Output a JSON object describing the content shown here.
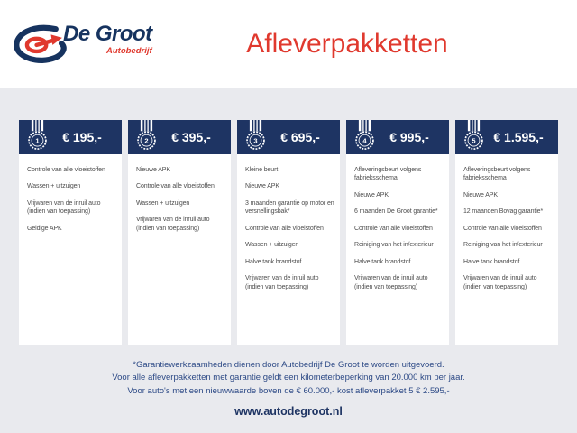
{
  "logo": {
    "name": "De Groot",
    "subtitle": "Autobedrijf"
  },
  "page_title": "Afleverpakketten",
  "packages": [
    {
      "number": "1",
      "price": "€ 195,-",
      "items": [
        "Controle van alle vloeistoffen",
        "Wassen + uitzuigen",
        "Vrijwaren van de inruil auto (indien van toepassing)",
        "Geldige APK"
      ]
    },
    {
      "number": "2",
      "price": "€ 395,-",
      "items": [
        "Nieuwe APK",
        "Controle van alle vloeistoffen",
        "Wassen + uitzuigen",
        "Vrijwaren van de inruil auto (indien van toepassing)"
      ]
    },
    {
      "number": "3",
      "price": "€ 695,-",
      "items": [
        "Kleine beurt",
        "Nieuwe APK",
        "3 maanden garantie op motor en versnellingsbak*",
        "Controle van alle vloeistoffen",
        "Wassen + uitzuigen",
        "Halve tank brandstof",
        "Vrijwaren van de inruil auto (indien van toepassing)"
      ]
    },
    {
      "number": "4",
      "price": "€ 995,-",
      "items": [
        "Afleveringsbeurt volgens fabrieksschema",
        "Nieuwe APK",
        "6 maanden De Groot garantie*",
        "Controle van alle vloeistoffen",
        "Reiniging van het in/exterieur",
        "Halve tank brandstof",
        "Vrijwaren van de inruil auto (indien van toepassing)"
      ]
    },
    {
      "number": "5",
      "price": "€ 1.595,-",
      "items": [
        "Afleveringsbeurt volgens fabrieksschema",
        "Nieuwe APK",
        "12 maanden Bovag garantie*",
        "Controle van alle vloeistoffen",
        "Reiniging van het in/exterieur",
        "Halve tank brandstof",
        "Vrijwaren van de inruil auto (indien van toepassing)"
      ]
    }
  ],
  "footer": {
    "notes": [
      "*Garantiewerkzaamheden dienen door Autobedrijf De Groot te worden uitgevoerd.",
      "Voor alle afleverpakketten met garantie geldt een kilometerbeperking van 20.000 km per jaar.",
      "Voor auto's met een nieuwwaarde boven de € 60.000,- kost afleverpakket 5 € 2.595,-"
    ],
    "website": "www.autodegroot.nl"
  },
  "colors": {
    "navy": "#1e3463",
    "red": "#e0392e",
    "background": "#e9eaee",
    "item_text": "#4d4d4d",
    "footer_text": "#2d4a86"
  }
}
